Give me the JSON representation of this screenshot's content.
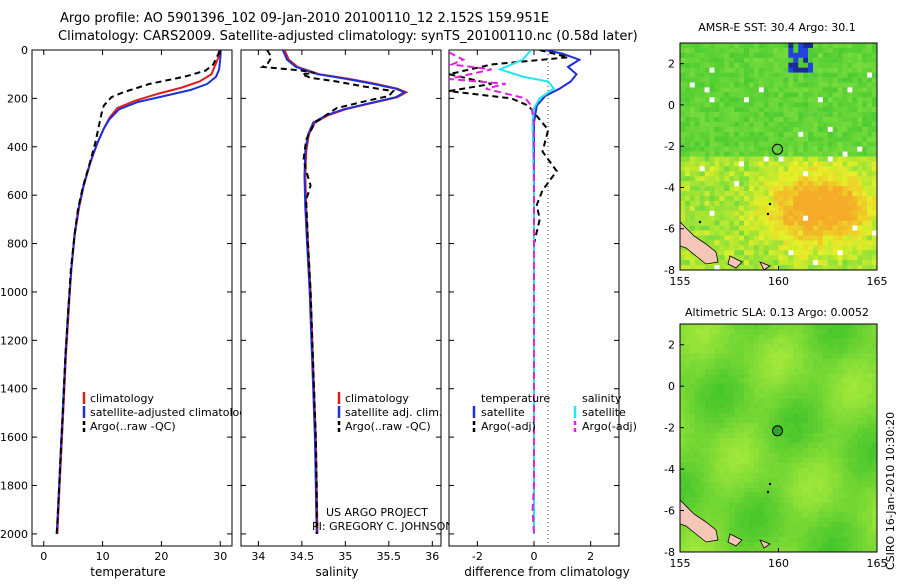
{
  "header": {
    "line1": "Argo profile: AO 5901396_102 09-Jan-2010 20100110_12 2.152S 159.951E",
    "line2": "Climatology: CARS2009. Satellite-adjusted climatology: synTS_20100110.nc (0.58d later)"
  },
  "side_label": "CSIRO 16-Jan-2010 10:30:20",
  "credit": {
    "line1": "US ARGO PROJECT",
    "line2": "PI: GREGORY C. JOHNSON"
  },
  "colors": {
    "climatology": "#e11b1b",
    "satellite": "#1f2fd6",
    "argo": "#000000",
    "cyan": "#22e5f0",
    "magenta": "#e020e0"
  },
  "chart_data": [
    {
      "type": "line",
      "id": "temperature",
      "xlabel": "temperature",
      "xlim": [
        -2,
        32
      ],
      "ylim": [
        2050,
        0
      ],
      "xticks": [
        0,
        10,
        20,
        30
      ],
      "yticks": [
        0,
        200,
        400,
        600,
        800,
        1000,
        1200,
        1400,
        1600,
        1800,
        2000
      ],
      "legend": [
        "climatology",
        "satellite-adjusted climatology",
        "Argo(..raw -QC)"
      ],
      "series": [
        {
          "name": "climatology",
          "color": "#e11b1b",
          "dash": "",
          "points": [
            [
              29.8,
              0
            ],
            [
              29.7,
              30
            ],
            [
              29.2,
              60
            ],
            [
              28.5,
              100
            ],
            [
              26.5,
              130
            ],
            [
              23.5,
              155
            ],
            [
              19.5,
              180
            ],
            [
              15.5,
              210
            ],
            [
              12.5,
              240
            ],
            [
              11.2,
              280
            ],
            [
              10.3,
              320
            ],
            [
              9.2,
              380
            ],
            [
              8.0,
              460
            ],
            [
              6.8,
              560
            ],
            [
              6.0,
              650
            ],
            [
              5.3,
              760
            ],
            [
              4.7,
              900
            ],
            [
              4.3,
              1050
            ],
            [
              3.8,
              1250
            ],
            [
              3.4,
              1450
            ],
            [
              3.0,
              1650
            ],
            [
              2.7,
              1800
            ],
            [
              2.4,
              1950
            ],
            [
              2.3,
              2000
            ]
          ]
        },
        {
          "name": "satellite-adjusted climatology",
          "color": "#1f2fd6",
          "dash": "",
          "points": [
            [
              30.1,
              0
            ],
            [
              30.0,
              40
            ],
            [
              29.8,
              80
            ],
            [
              29.3,
              110
            ],
            [
              27.8,
              140
            ],
            [
              25,
              165
            ],
            [
              20.5,
              190
            ],
            [
              16,
              215
            ],
            [
              12.8,
              245
            ],
            [
              11.2,
              285
            ],
            [
              10.2,
              325
            ],
            [
              9.1,
              385
            ],
            [
              7.9,
              465
            ],
            [
              6.7,
              565
            ],
            [
              5.9,
              655
            ],
            [
              5.2,
              765
            ],
            [
              4.7,
              905
            ],
            [
              4.2,
              1055
            ],
            [
              3.7,
              1255
            ],
            [
              3.3,
              1455
            ],
            [
              2.9,
              1655
            ],
            [
              2.6,
              1805
            ],
            [
              2.3,
              1955
            ],
            [
              2.2,
              2000
            ]
          ]
        },
        {
          "name": "Argo(..raw -QC)",
          "color": "#000000",
          "dash": "6,4",
          "points": [
            [
              29.9,
              5
            ],
            [
              29.4,
              30
            ],
            [
              28.8,
              60
            ],
            [
              27.5,
              85
            ],
            [
              24,
              110
            ],
            [
              18,
              140
            ],
            [
              13.5,
              175
            ],
            [
              11.5,
              195
            ],
            [
              10.2,
              230
            ],
            [
              9.8,
              265
            ],
            [
              9.5,
              300
            ],
            [
              8.8,
              380
            ],
            [
              7.8,
              470
            ],
            [
              6.6,
              570
            ],
            [
              5.8,
              660
            ],
            [
              5.2,
              770
            ],
            [
              4.6,
              910
            ],
            [
              4.2,
              1060
            ],
            [
              3.7,
              1260
            ],
            [
              3.3,
              1460
            ],
            [
              2.9,
              1660
            ],
            [
              2.6,
              1810
            ],
            [
              2.3,
              1960
            ],
            [
              2.2,
              2000
            ]
          ]
        }
      ]
    },
    {
      "type": "line",
      "id": "salinity",
      "xlabel": "salinity",
      "xlim": [
        33.8,
        36.1
      ],
      "ylim": [
        2050,
        0
      ],
      "xticks": [
        34,
        34.5,
        35,
        35.5,
        36
      ],
      "xticklabels": [
        "34",
        "34.5",
        "35",
        "35.5",
        "36"
      ],
      "legend": [
        "climatology",
        "satellite adj. clim.",
        "Argo(..raw -QC)"
      ],
      "series": [
        {
          "name": "climatology",
          "color": "#e11b1b",
          "dash": "",
          "points": [
            [
              34.3,
              0
            ],
            [
              34.35,
              40
            ],
            [
              34.45,
              70
            ],
            [
              34.7,
              100
            ],
            [
              35.05,
              120
            ],
            [
              35.35,
              140
            ],
            [
              35.6,
              160
            ],
            [
              35.7,
              175
            ],
            [
              35.6,
              195
            ],
            [
              35.3,
              220
            ],
            [
              35.0,
              245
            ],
            [
              34.8,
              270
            ],
            [
              34.65,
              300
            ],
            [
              34.58,
              350
            ],
            [
              34.55,
              420
            ],
            [
              34.54,
              520
            ],
            [
              34.55,
              650
            ],
            [
              34.57,
              800
            ],
            [
              34.6,
              1000
            ],
            [
              34.62,
              1200
            ],
            [
              34.64,
              1400
            ],
            [
              34.66,
              1600
            ],
            [
              34.67,
              1800
            ],
            [
              34.68,
              2000
            ]
          ]
        },
        {
          "name": "satellite adj. clim.",
          "color": "#1f2fd6",
          "dash": "",
          "points": [
            [
              34.28,
              0
            ],
            [
              34.33,
              40
            ],
            [
              34.43,
              70
            ],
            [
              34.68,
              100
            ],
            [
              35.02,
              120
            ],
            [
              35.32,
              140
            ],
            [
              35.58,
              160
            ],
            [
              35.68,
              175
            ],
            [
              35.58,
              195
            ],
            [
              35.28,
              220
            ],
            [
              34.98,
              245
            ],
            [
              34.78,
              270
            ],
            [
              34.63,
              300
            ],
            [
              34.57,
              350
            ],
            [
              34.54,
              420
            ],
            [
              34.53,
              520
            ],
            [
              34.54,
              650
            ],
            [
              34.56,
              800
            ],
            [
              34.59,
              1000
            ],
            [
              34.61,
              1200
            ],
            [
              34.63,
              1400
            ],
            [
              34.65,
              1600
            ],
            [
              34.66,
              1800
            ],
            [
              34.67,
              2000
            ]
          ]
        },
        {
          "name": "Argo(..raw -QC)",
          "color": "#000000",
          "dash": "6,4",
          "points": [
            [
              34.1,
              0
            ],
            [
              34.15,
              30
            ],
            [
              34.1,
              60
            ],
            [
              34.05,
              70
            ],
            [
              34.5,
              85
            ],
            [
              34.65,
              95
            ],
            [
              34.5,
              100
            ],
            [
              34.6,
              115
            ],
            [
              34.9,
              130
            ],
            [
              35.2,
              150
            ],
            [
              35.55,
              170
            ],
            [
              35.5,
              190
            ],
            [
              35.25,
              210
            ],
            [
              34.9,
              240
            ],
            [
              34.65,
              300
            ],
            [
              34.55,
              370
            ],
            [
              34.52,
              450
            ],
            [
              34.55,
              500
            ],
            [
              34.6,
              560
            ],
            [
              34.55,
              620
            ],
            [
              34.57,
              800
            ],
            [
              34.6,
              1000
            ],
            [
              34.62,
              1200
            ],
            [
              34.64,
              1400
            ],
            [
              34.66,
              1600
            ],
            [
              34.67,
              1800
            ],
            [
              34.67,
              2000
            ]
          ]
        }
      ]
    },
    {
      "type": "line",
      "id": "difference",
      "xlabel": "difference from climatology",
      "xlim": [
        -3.0,
        3.0
      ],
      "ylim": [
        2050,
        0
      ],
      "xticks": [
        -2,
        0,
        2
      ],
      "legend_left_title": "temperature",
      "legend_right_title": "salinity",
      "legend_left": [
        "satellite",
        "Argo(-adj)"
      ],
      "legend_right": [
        "satellite",
        "Argo(-adj)"
      ],
      "series": [
        {
          "name": "temperature satellite",
          "color": "#1f2fd6",
          "dash": "",
          "points": [
            [
              0.4,
              0
            ],
            [
              1.0,
              15
            ],
            [
              1.6,
              40
            ],
            [
              1.2,
              70
            ],
            [
              1.5,
              100
            ],
            [
              1.3,
              130
            ],
            [
              0.9,
              160
            ],
            [
              0.4,
              190
            ],
            [
              0.1,
              230
            ],
            [
              0.0,
              300
            ],
            [
              0.0,
              600
            ],
            [
              0.0,
              1000
            ],
            [
              0.0,
              1400
            ],
            [
              0.0,
              1800
            ],
            [
              0.0,
              2000
            ]
          ]
        },
        {
          "name": "temperature Argo",
          "color": "#000000",
          "dash": "6,4",
          "points": [
            [
              0.2,
              0
            ],
            [
              1.2,
              30
            ],
            [
              -1.5,
              60
            ],
            [
              -3.0,
              100
            ],
            [
              -1.5,
              140
            ],
            [
              -3.0,
              170
            ],
            [
              -0.8,
              200
            ],
            [
              -0.2,
              230
            ],
            [
              0.5,
              330
            ],
            [
              0.3,
              420
            ],
            [
              0.8,
              500
            ],
            [
              0.3,
              580
            ],
            [
              0.1,
              640
            ],
            [
              0.2,
              700
            ],
            [
              0.0,
              800
            ],
            [
              0.0,
              1200
            ],
            [
              0.0,
              1600
            ],
            [
              0.0,
              2000
            ]
          ]
        },
        {
          "name": "salinity satellite",
          "color": "#22e5f0",
          "dash": "",
          "points": [
            [
              -0.1,
              0
            ],
            [
              -0.4,
              40
            ],
            [
              -1.2,
              80
            ],
            [
              -0.4,
              110
            ],
            [
              0.5,
              130
            ],
            [
              0.7,
              160
            ],
            [
              0.2,
              200
            ],
            [
              0.0,
              240
            ],
            [
              -0.05,
              300
            ],
            [
              0.0,
              600
            ],
            [
              0.0,
              1000
            ],
            [
              0.0,
              1400
            ],
            [
              0.0,
              1800
            ],
            [
              0.0,
              2000
            ]
          ]
        },
        {
          "name": "salinity Argo",
          "color": "#e020e0",
          "dash": "7,4",
          "points": [
            [
              -3.0,
              10
            ],
            [
              -2.5,
              40
            ],
            [
              -2.9,
              60
            ],
            [
              -1.5,
              80
            ],
            [
              -3.0,
              120
            ],
            [
              -1.0,
              140
            ],
            [
              -1.7,
              160
            ],
            [
              -1.0,
              180
            ],
            [
              -0.3,
              200
            ],
            [
              -0.1,
              230
            ],
            [
              0.0,
              300
            ],
            [
              0.0,
              600
            ],
            [
              0.0,
              1000
            ],
            [
              0.0,
              1400
            ],
            [
              0.0,
              1800
            ],
            [
              -0.05,
              1900
            ],
            [
              0.0,
              2000
            ]
          ]
        }
      ]
    },
    {
      "type": "heatmap",
      "id": "sst_map",
      "title": "AMSR-E SST: 30.4 Argo: 30.1",
      "xlim": [
        155,
        165
      ],
      "ylim": [
        -8,
        3
      ],
      "xticks": [
        155,
        160,
        165
      ],
      "yticks": [
        2,
        0,
        -2,
        -4,
        -6,
        -8
      ],
      "marker": {
        "lon": 159.951,
        "lat": -2.152
      }
    },
    {
      "type": "heatmap",
      "id": "sla_map",
      "title": "Altimetric SLA: 0.13 Argo: 0.0052",
      "xlim": [
        155,
        165
      ],
      "ylim": [
        -8,
        3
      ],
      "xticks": [
        155,
        160,
        165
      ],
      "yticks": [
        2,
        0,
        -2,
        -4,
        -6,
        -8
      ],
      "marker": {
        "lon": 159.951,
        "lat": -2.152
      }
    }
  ]
}
